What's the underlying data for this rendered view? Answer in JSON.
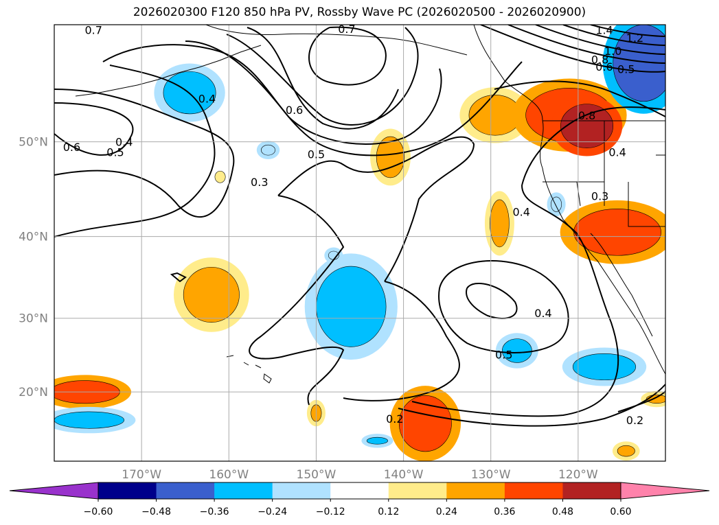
{
  "title": "2026020300 F120 850 hPa PV, Rossby Wave PC (2026020500 - 2026020900)",
  "map": {
    "projection": "Mercator",
    "lon_range": [
      -180,
      -110
    ],
    "lat_range": [
      10,
      60
    ],
    "gridlines": true,
    "lon_ticks": [
      {
        "lon": -170,
        "label": "170°W"
      },
      {
        "lon": -160,
        "label": "160°W"
      },
      {
        "lon": -150,
        "label": "150°W"
      },
      {
        "lon": -140,
        "label": "140°W"
      },
      {
        "lon": -130,
        "label": "130°W"
      },
      {
        "lon": -120,
        "label": "120°W"
      }
    ],
    "lat_ticks": [
      {
        "lat": 20,
        "label": "20°N"
      },
      {
        "lat": 30,
        "label": "30°N"
      },
      {
        "lat": 40,
        "label": "40°N"
      },
      {
        "lat": 50,
        "label": "50°N"
      }
    ]
  },
  "contours": {
    "field": "850 hPa PV",
    "labels": [
      {
        "text": "0.7",
        "lon": -175.5,
        "lat": 59.6
      },
      {
        "text": "0.7",
        "lon": -146.5,
        "lat": 59.7
      },
      {
        "text": "0.6",
        "lon": -178.0,
        "lat": 49.5
      },
      {
        "text": "0.5",
        "lon": -173.0,
        "lat": 49.0
      },
      {
        "text": "0.4",
        "lon": -172.0,
        "lat": 50.0
      },
      {
        "text": "0.4",
        "lon": -162.5,
        "lat": 54.0
      },
      {
        "text": "0.6",
        "lon": -152.5,
        "lat": 53.0
      },
      {
        "text": "0.5",
        "lon": -150.0,
        "lat": 48.8
      },
      {
        "text": "0.3",
        "lon": -156.5,
        "lat": 46.0
      },
      {
        "text": "0.4",
        "lon": -126.5,
        "lat": 42.8
      },
      {
        "text": "0.4",
        "lon": -124.0,
        "lat": 30.7
      },
      {
        "text": "0.5",
        "lon": -128.5,
        "lat": 25.2
      },
      {
        "text": "0.2",
        "lon": -141.0,
        "lat": 16.2
      },
      {
        "text": "0.2",
        "lon": -113.5,
        "lat": 16.0
      },
      {
        "text": "0.3",
        "lon": -117.5,
        "lat": 44.5
      },
      {
        "text": "0.4",
        "lon": -115.5,
        "lat": 49.0
      },
      {
        "text": "0.8",
        "lon": -119.0,
        "lat": 52.5
      },
      {
        "text": "1.4",
        "lon": -117.0,
        "lat": 59.6
      },
      {
        "text": "1.2",
        "lon": -113.5,
        "lat": 59.0
      },
      {
        "text": "1.0",
        "lon": -116.0,
        "lat": 58.0
      },
      {
        "text": "0.8",
        "lon": -117.5,
        "lat": 57.3
      },
      {
        "text": "0.5",
        "lon": -114.5,
        "lat": 56.5
      },
      {
        "text": "0.6",
        "lon": -117.0,
        "lat": 56.7
      }
    ]
  },
  "shading": {
    "field": "Rossby Wave PC",
    "anomalies": [
      {
        "lon": -162.0,
        "lat": 33.0,
        "rx": 3.2,
        "ry": 3.4,
        "level": "+0.24"
      },
      {
        "lon": -141.5,
        "lat": 48.5,
        "rx": 1.6,
        "ry": 2.0,
        "level": "+0.24"
      },
      {
        "lon": -129.5,
        "lat": 52.5,
        "rx": 3.0,
        "ry": 1.8,
        "level": "+0.24"
      },
      {
        "lon": -121.0,
        "lat": 52.5,
        "rx": 5.0,
        "ry": 2.4,
        "level": "+0.36"
      },
      {
        "lon": -119.0,
        "lat": 51.5,
        "rx": 3.0,
        "ry": 2.0,
        "level": "+0.48"
      },
      {
        "lon": -129.0,
        "lat": 41.5,
        "rx": 1.1,
        "ry": 2.6,
        "level": "+0.24"
      },
      {
        "lon": -115.5,
        "lat": 40.5,
        "rx": 5.0,
        "ry": 2.6,
        "level": "+0.36"
      },
      {
        "lon": -137.5,
        "lat": 15.5,
        "rx": 3.0,
        "ry": 4.0,
        "level": "+0.36"
      },
      {
        "lon": -150.0,
        "lat": 17.0,
        "rx": 0.6,
        "ry": 1.2,
        "level": "+0.24"
      },
      {
        "lon": -176.5,
        "lat": 20.0,
        "rx": 4.0,
        "ry": 1.6,
        "level": "+0.36"
      },
      {
        "lon": -111.0,
        "lat": 19.0,
        "rx": 1.2,
        "ry": 0.6,
        "level": "+0.24"
      },
      {
        "lon": -114.5,
        "lat": 11.5,
        "rx": 1.0,
        "ry": 0.8,
        "level": "+0.24"
      },
      {
        "lon": -161.0,
        "lat": 46.5,
        "rx": 0.6,
        "ry": 0.6,
        "level": "+0.12"
      },
      {
        "lon": -146.0,
        "lat": 31.5,
        "rx": 4.0,
        "ry": 5.0,
        "level": "-0.36"
      },
      {
        "lon": -164.5,
        "lat": 54.5,
        "rx": 3.0,
        "ry": 1.8,
        "level": "-0.36"
      },
      {
        "lon": -127.0,
        "lat": 25.7,
        "rx": 1.7,
        "ry": 1.6,
        "level": "-0.36"
      },
      {
        "lon": -117.0,
        "lat": 23.5,
        "rx": 3.6,
        "ry": 1.8,
        "level": "-0.36"
      },
      {
        "lon": -176.0,
        "lat": 16.0,
        "rx": 4.0,
        "ry": 1.2,
        "level": "-0.36"
      },
      {
        "lon": -112.5,
        "lat": 57.0,
        "rx": 3.5,
        "ry": 3.0,
        "level": "-0.48"
      },
      {
        "lon": -148.0,
        "lat": 37.8,
        "rx": 0.6,
        "ry": 0.5,
        "level": "-0.24"
      },
      {
        "lon": -143.0,
        "lat": 13.0,
        "rx": 1.2,
        "ry": 0.5,
        "level": "-0.36"
      },
      {
        "lon": -122.5,
        "lat": 43.6,
        "rx": 0.6,
        "ry": 0.8,
        "level": "-0.24"
      },
      {
        "lon": -155.5,
        "lat": 49.2,
        "rx": 0.8,
        "ry": 0.5,
        "level": "-0.24"
      }
    ]
  },
  "colorbar": {
    "ticks": [
      "−0.60",
      "−0.48",
      "−0.36",
      "−0.24",
      "−0.12",
      "0.12",
      "0.24",
      "0.36",
      "0.48",
      "0.60"
    ],
    "colors": [
      "#9932cc",
      "#00008b",
      "#3a5fcd",
      "#00bfff",
      "#b0e2ff",
      "#ffffff",
      "#ffec8b",
      "#ffa500",
      "#ff4500",
      "#b22222",
      "#ff82ab"
    ]
  }
}
